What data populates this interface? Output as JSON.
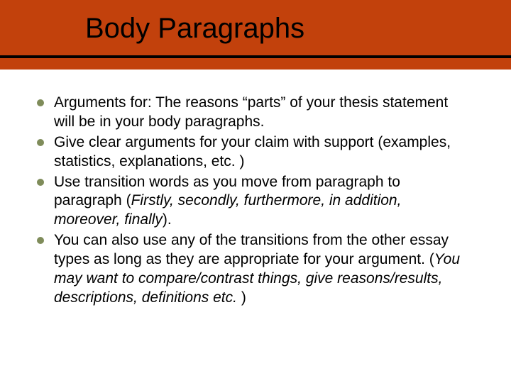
{
  "slide": {
    "title": "Body Paragraphs",
    "header_background_color": "#c2410c",
    "title_color": "#000000",
    "title_fontsize": 40,
    "underline_color": "#000000",
    "underline_thickness": 4,
    "bullets": [
      {
        "text_plain": "Arguments for:  The reasons “parts” of your thesis statement will be in your body paragraphs.",
        "segments": [
          {
            "text": "Arguments for:  The reasons “parts” of your thesis statement will be in your body paragraphs.",
            "italic": false
          }
        ]
      },
      {
        "text_plain": "Give clear arguments for your claim with support (examples, statistics, explanations, etc. )",
        "segments": [
          {
            "text": "Give clear arguments for your claim with support (examples, statistics, explanations, etc. )",
            "italic": false
          }
        ]
      },
      {
        "text_plain": "Use transition words as you move from paragraph to paragraph (Firstly, secondly, furthermore, in addition, moreover, finally).",
        "segments": [
          {
            "text": "Use transition words as you move from paragraph to paragraph (",
            "italic": false
          },
          {
            "text": "Firstly, secondly, furthermore, in addition, moreover, finally",
            "italic": true
          },
          {
            "text": ").",
            "italic": false
          }
        ]
      },
      {
        "text_plain": "You can also use any of the transitions from the other essay types as long as they are appropriate for your argument. (You may want to compare/contrast things, give reasons/results, descriptions, definitions etc. )",
        "segments": [
          {
            "text": "You can also use any of the transitions from the other essay types as long as they are appropriate for your argument. (",
            "italic": false
          },
          {
            "text": "You may want to compare/contrast things, give reasons/results, descriptions, definitions etc. ",
            "italic": true
          },
          {
            "text": ")",
            "italic": false
          }
        ]
      }
    ],
    "bullet_marker_color": "#7f8c5a",
    "bullet_fontsize": 21,
    "bullet_text_color": "#000000",
    "background_color": "#ffffff"
  }
}
